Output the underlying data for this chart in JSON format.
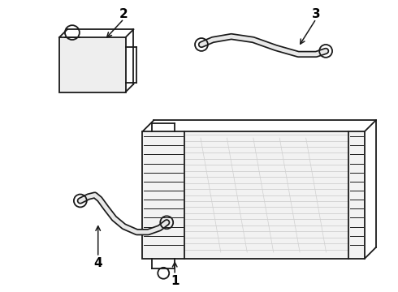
{
  "background_color": "#ffffff",
  "line_color": "#1a1a1a",
  "label_color": "#000000",
  "lw_main": 1.3,
  "lw_hose_outer": 6.0,
  "lw_hose_inner": 3.5
}
